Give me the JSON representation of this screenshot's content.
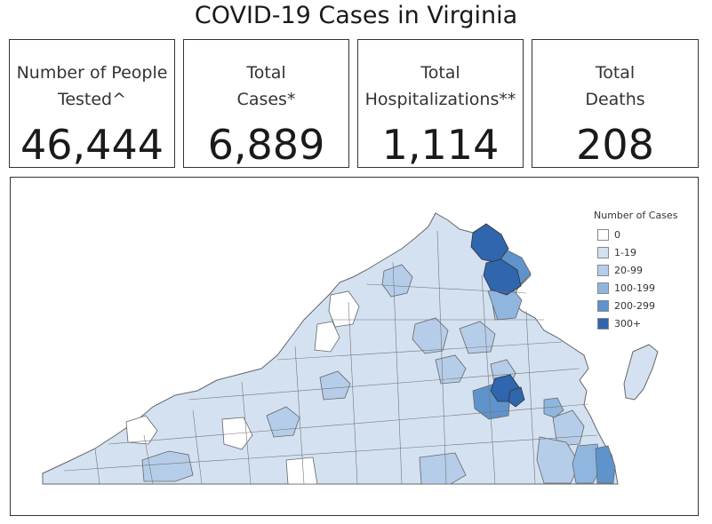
{
  "title": "COVID-19 Cases in Virginia",
  "cards": [
    {
      "label_line1": "Number of People",
      "label_line2": "Tested^",
      "value": "46,444"
    },
    {
      "label_line1": "Total",
      "label_line2": "Cases*",
      "value": "6,889"
    },
    {
      "label_line1": "Total",
      "label_line2": "Hospitalizations**",
      "value": "1,114"
    },
    {
      "label_line1": "Total",
      "label_line2": "Deaths",
      "value": "208"
    }
  ],
  "legend": {
    "title": "Number of Cases",
    "items": [
      {
        "label": "0",
        "color": "#ffffff"
      },
      {
        "label": "1-19",
        "color": "#d4e1f1"
      },
      {
        "label": "20-99",
        "color": "#b5cde8"
      },
      {
        "label": "100-199",
        "color": "#8fb6de"
      },
      {
        "label": "200-299",
        "color": "#5e93cc"
      },
      {
        "label": "300+",
        "color": "#2f66ad"
      }
    ]
  }
}
